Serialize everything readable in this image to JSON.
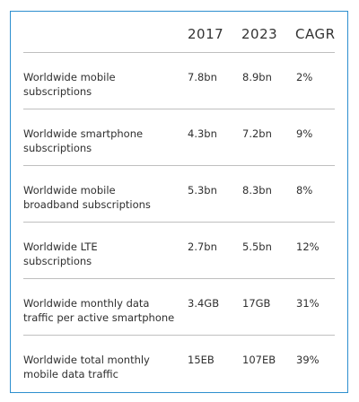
{
  "table": {
    "headers": {
      "col_2017": "2017",
      "col_2023": "2023",
      "col_cagr": "CAGR"
    },
    "rows": [
      {
        "metric_lines": [
          "Worldwide mobile",
          "subscriptions"
        ],
        "y2017": "7.8bn",
        "y2023": "8.9bn",
        "cagr": "2%"
      },
      {
        "metric_lines": [
          "Worldwide smartphone",
          "subscriptions"
        ],
        "y2017": "4.3bn",
        "y2023": "7.2bn",
        "cagr": "9%"
      },
      {
        "metric_lines": [
          "Worldwide mobile",
          "broadband subscriptions"
        ],
        "y2017": "5.3bn",
        "y2023": "8.3bn",
        "cagr": "8%"
      },
      {
        "metric_lines": [
          "Worldwide LTE",
          "subscriptions"
        ],
        "y2017": "2.7bn",
        "y2023": "5.5bn",
        "cagr": "12%"
      },
      {
        "metric_lines": [
          "Worldwide monthly data",
          "traffic per active smartphone"
        ],
        "y2017": "3.4GB",
        "y2023": "17GB",
        "cagr": "31%"
      },
      {
        "metric_lines": [
          "Worldwide total monthly",
          "mobile data traffic"
        ],
        "y2017": "15EB",
        "y2023": "107EB",
        "cagr": "39%"
      }
    ]
  },
  "colors": {
    "frame_border": "#2d8fcf",
    "rule": "#bfbfbf",
    "text": "#2f2f2f"
  }
}
